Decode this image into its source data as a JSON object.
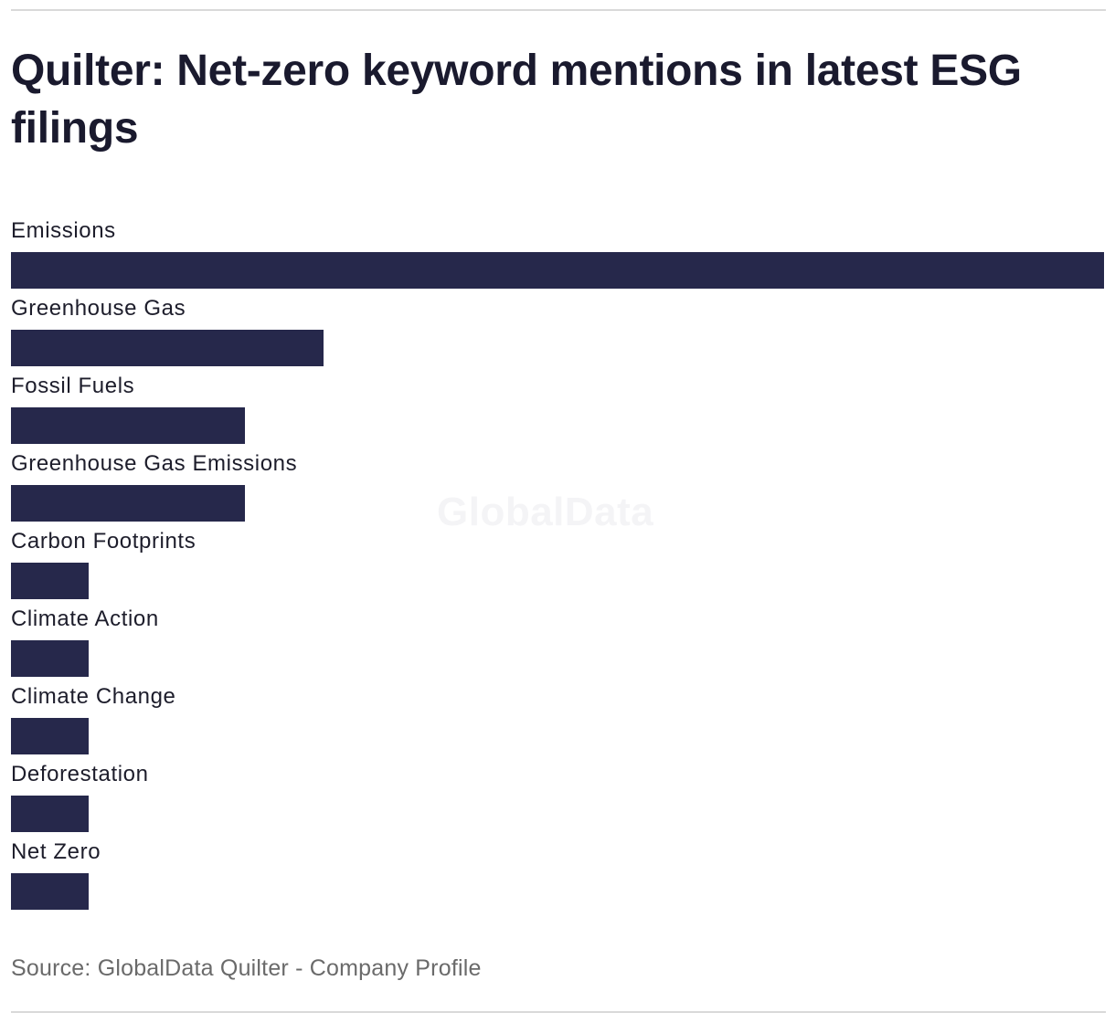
{
  "chart_data": {
    "type": "bar",
    "orientation": "horizontal",
    "title": "Quilter: Net-zero keyword mentions in latest ESG filings",
    "categories": [
      "Emissions",
      "Greenhouse Gas",
      "Fossil Fuels",
      "Greenhouse Gas Emissions",
      "Carbon Footprints",
      "Climate Action",
      "Climate Change",
      "Deforestation",
      "Net Zero"
    ],
    "values": [
      14,
      4,
      3,
      3,
      1,
      1,
      1,
      1,
      1
    ],
    "xlim": [
      0,
      14
    ],
    "grid": false,
    "bar_color": "#26284b"
  },
  "watermark": "GlobalData",
  "source": "Source: GlobalData Quilter - Company Profile"
}
